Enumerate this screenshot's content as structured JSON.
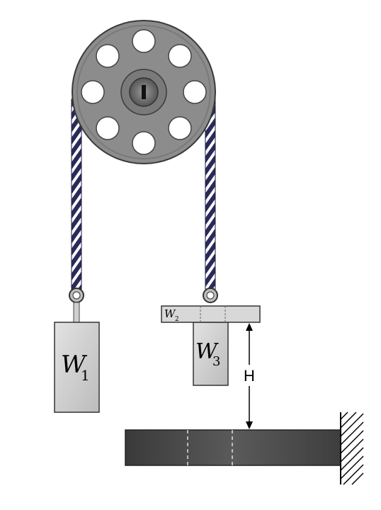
{
  "diagram": {
    "blocks": [
      {
        "id": "W1",
        "main": "W",
        "sub": "1"
      },
      {
        "id": "W2",
        "main": "W",
        "sub": "2"
      },
      {
        "id": "W3",
        "main": "W",
        "sub": "3"
      }
    ],
    "height_label": "H",
    "colors": {
      "pulley": "#8c8c8c",
      "pulley_dark": "#6e6e6e",
      "hub": "#5a5a5a",
      "rope_dark": "#2a2a5a",
      "rope_light": "#ffffff",
      "block": "#cfcfcf",
      "bar": "#4a4a4a",
      "hatch": "#000000"
    }
  }
}
